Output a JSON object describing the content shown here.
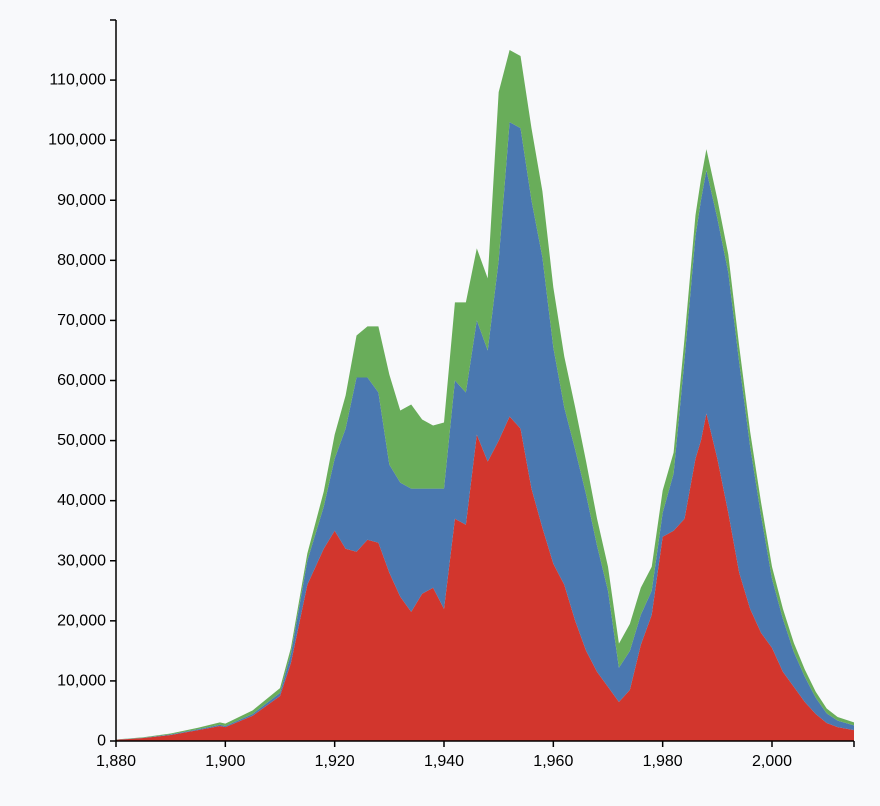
{
  "chart_data": {
    "type": "area",
    "stacked": true,
    "title": "",
    "xlabel": "",
    "ylabel": "",
    "xlim": [
      1880,
      2015
    ],
    "ylim": [
      0,
      120000
    ],
    "grid": false,
    "x_ticks": [
      1880,
      1900,
      1920,
      1940,
      1960,
      1980,
      2000
    ],
    "x_tick_labels": [
      "1,880",
      "1,900",
      "1,920",
      "1,940",
      "1,960",
      "1,980",
      "2,000"
    ],
    "y_ticks": [
      0,
      10000,
      20000,
      30000,
      40000,
      50000,
      60000,
      70000,
      80000,
      90000,
      100000,
      110000
    ],
    "y_tick_labels": [
      "0",
      "10,000",
      "20,000",
      "30,000",
      "40,000",
      "50,000",
      "60,000",
      "70,000",
      "80,000",
      "90,000",
      "100,000",
      "110,000"
    ],
    "x": [
      1880,
      1885,
      1890,
      1895,
      1899,
      1900,
      1905,
      1910,
      1912,
      1915,
      1918,
      1920,
      1922,
      1924,
      1926,
      1928,
      1930,
      1932,
      1934,
      1936,
      1938,
      1940,
      1942,
      1944,
      1946,
      1948,
      1950,
      1952,
      1954,
      1956,
      1958,
      1960,
      1962,
      1964,
      1966,
      1968,
      1970,
      1972,
      1974,
      1976,
      1978,
      1980,
      1982,
      1984,
      1986,
      1987,
      1988,
      1990,
      1992,
      1994,
      1996,
      1998,
      2000,
      2002,
      2004,
      2006,
      2008,
      2010,
      2012,
      2015
    ],
    "series": [
      {
        "color": "#d2362d",
        "values": [
          200,
          500,
          1000,
          1800,
          2500,
          2300,
          4200,
          7500,
          13000,
          26000,
          32000,
          35000,
          32000,
          31500,
          33500,
          33000,
          28000,
          24000,
          21500,
          24500,
          25500,
          22000,
          37000,
          36000,
          51000,
          46500,
          50000,
          54000,
          52000,
          42000,
          35500,
          29500,
          26000,
          20000,
          15000,
          11500,
          9000,
          6500,
          8500,
          16000,
          21000,
          34000,
          35000,
          37000,
          47000,
          50000,
          54500,
          47000,
          38000,
          28000,
          22000,
          18000,
          15500,
          11500,
          9000,
          6500,
          4500,
          3000,
          2300,
          1800
        ]
      },
      {
        "color": "#4a78b0",
        "values": [
          20,
          50,
          100,
          150,
          200,
          200,
          300,
          500,
          1500,
          4000,
          7000,
          12000,
          20000,
          29000,
          27000,
          25000,
          18000,
          19000,
          20500,
          17500,
          16500,
          20000,
          23000,
          22000,
          19000,
          18500,
          30000,
          49000,
          50000,
          48000,
          45000,
          36000,
          29500,
          28500,
          26000,
          21000,
          16000,
          5700,
          6500,
          5000,
          4000,
          4000,
          9500,
          26500,
          37000,
          40000,
          40500,
          40000,
          40000,
          35000,
          27000,
          19500,
          11500,
          8800,
          5800,
          4200,
          2700,
          1600,
          1100,
          800
        ]
      },
      {
        "color": "#69ad5a",
        "values": [
          30,
          80,
          150,
          250,
          400,
          400,
          600,
          800,
          1000,
          1200,
          2500,
          4000,
          5500,
          7000,
          8500,
          11000,
          15000,
          12000,
          14000,
          11500,
          10500,
          11000,
          13000,
          15000,
          12000,
          12000,
          28000,
          12000,
          12000,
          12000,
          11000,
          10000,
          8500,
          7000,
          5500,
          4500,
          4000,
          4000,
          4500,
          4500,
          4000,
          3700,
          3500,
          3500,
          3500,
          3500,
          3500,
          3200,
          3000,
          2700,
          2500,
          2200,
          2000,
          1700,
          1500,
          1200,
          1000,
          800,
          600,
          500
        ]
      }
    ]
  }
}
